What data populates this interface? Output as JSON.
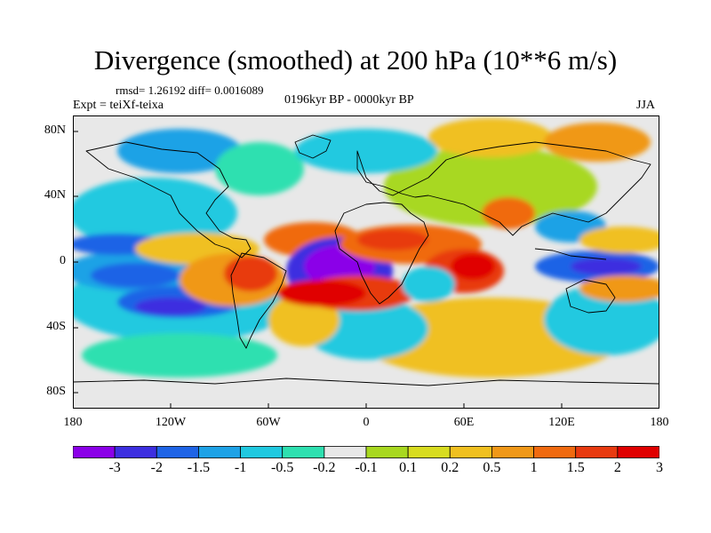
{
  "title": "Divergence (smoothed) at 200 hPa (10**6 m/s)",
  "stats_line": "rmsd= 1.26192 diff= 0.0016089",
  "experiment": "Expt = teiXf-teixa",
  "period": "0196kyr BP - 0000kyr BP",
  "season": "JJA",
  "lat_labels": [
    "80N",
    "40N",
    "0",
    "40S",
    "80S"
  ],
  "lon_labels": [
    "180",
    "120W",
    "60W",
    "0",
    "60E",
    "120E",
    "180"
  ],
  "colorbar": {
    "colors": [
      "#8b00e8",
      "#3d2fe0",
      "#1f64e6",
      "#1ea2e6",
      "#20c9e0",
      "#2ee0b0",
      "#e8e8e8",
      "#a8d820",
      "#d8dc20",
      "#f0c020",
      "#f09818",
      "#f06a10",
      "#e83a10",
      "#e00000"
    ],
    "labels": [
      "-3",
      "-2",
      "-1.5",
      "-1",
      "-0.5",
      "-0.2",
      "-0.1",
      "0.1",
      "0.2",
      "0.5",
      "1",
      "1.5",
      "2",
      "3"
    ]
  },
  "colors": {
    "background": "#e8e8e8",
    "coast": "#000000"
  }
}
